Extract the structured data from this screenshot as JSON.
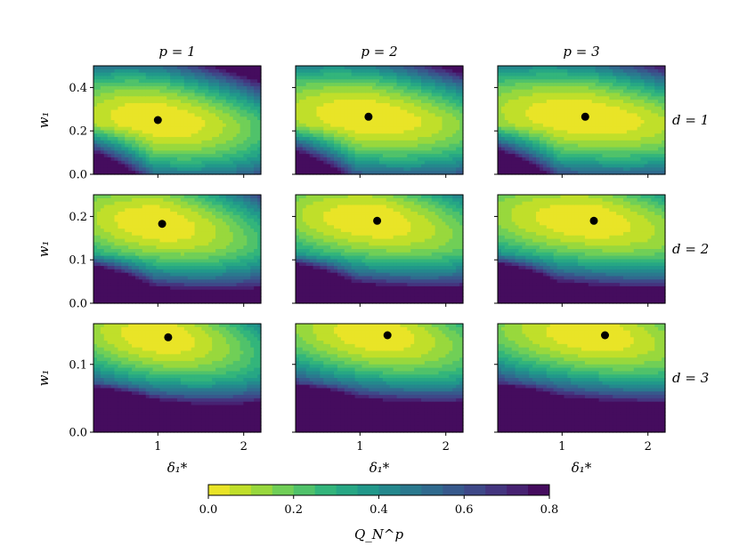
{
  "chart_data": {
    "type": "heatmap",
    "layout": "3x3 grid of contour heatmaps, shared x axis per column, shared y axis per row",
    "column_titles": [
      "p = 1",
      "p = 2",
      "p = 3"
    ],
    "row_titles": [
      "d = 1",
      "d = 2",
      "d = 3"
    ],
    "xlabel": "δ₁*",
    "ylabel": "w₁",
    "xlim": [
      0.25,
      2.2
    ],
    "x_ticks": [
      1,
      2
    ],
    "x_tick_labels": [
      "1",
      "2"
    ],
    "rows": [
      {
        "ylim": [
          0,
          0.5
        ],
        "y_ticks": [
          0,
          0.2,
          0.4
        ],
        "y_tick_labels": [
          "0.0",
          "0.2",
          "0.4"
        ]
      },
      {
        "ylim": [
          0,
          0.25
        ],
        "y_ticks": [
          0,
          0.1,
          0.2
        ],
        "y_tick_labels": [
          "0.0",
          "0.1",
          "0.2"
        ]
      },
      {
        "ylim": [
          0,
          0.16
        ],
        "y_ticks": [
          0,
          0.1
        ],
        "y_tick_labels": [
          "0.0",
          "0.1"
        ]
      }
    ],
    "minima": [
      {
        "p": 1,
        "d": 1,
        "x": 1.0,
        "y": 0.25
      },
      {
        "p": 2,
        "d": 1,
        "x": 1.1,
        "y": 0.265
      },
      {
        "p": 3,
        "d": 1,
        "x": 1.27,
        "y": 0.265
      },
      {
        "p": 1,
        "d": 2,
        "x": 1.05,
        "y": 0.183
      },
      {
        "p": 2,
        "d": 2,
        "x": 1.2,
        "y": 0.19
      },
      {
        "p": 3,
        "d": 2,
        "x": 1.37,
        "y": 0.19
      },
      {
        "p": 1,
        "d": 3,
        "x": 1.12,
        "y": 0.14
      },
      {
        "p": 2,
        "d": 3,
        "x": 1.32,
        "y": 0.143
      },
      {
        "p": 3,
        "d": 3,
        "x": 1.5,
        "y": 0.143
      }
    ],
    "colorbar": {
      "label": "Q_N^p",
      "range": [
        0,
        0.8
      ],
      "ticks": [
        0,
        0.2,
        0.4,
        0.6,
        0.8
      ],
      "tick_labels": [
        "0.0",
        "0.2",
        "0.4",
        "0.6",
        "0.8"
      ],
      "levels": 16,
      "colormap": "viridis (reversed: yellow = 0.0, purple = 0.8)"
    }
  },
  "colors": {
    "viridis_stops": [
      "#fde725",
      "#b5de2b",
      "#6ece58",
      "#35b779",
      "#1f9e89",
      "#26828e",
      "#31688e",
      "#3e4989",
      "#482878",
      "#440154"
    ],
    "marker": "#000000"
  }
}
